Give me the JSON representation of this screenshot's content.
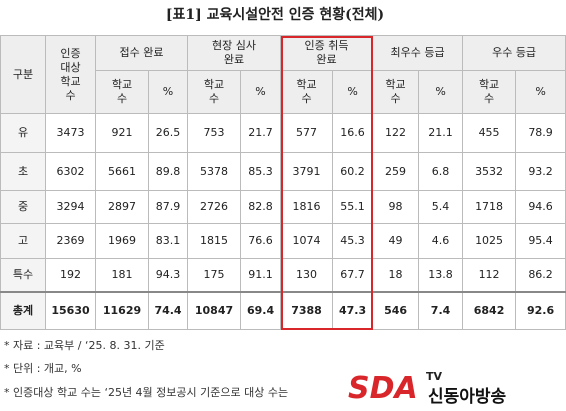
{
  "header": {
    "title": "[표1] 교육시설안전 인증 현황(전체)"
  },
  "table": {
    "corner": "구분",
    "target": "인증\n대상\n학교\n수",
    "groups": [
      "접수 완료",
      "현장 심사\n완료",
      "인증 취득\n완료",
      "최우수 등급",
      "우수 등급"
    ],
    "subheaders": [
      [
        "학교\n수",
        "%"
      ],
      [
        "학교\n수",
        "%"
      ],
      [
        "학교\n수",
        "%"
      ],
      [
        "학교\n수",
        "%"
      ],
      [
        "학교\n수",
        "%"
      ]
    ],
    "rows": [
      [
        "유",
        "3473",
        "921",
        "26.5",
        "753",
        "21.7",
        "577",
        "16.6",
        "122",
        "21.1",
        "455",
        "78.9"
      ],
      [
        "초",
        "6302",
        "5661",
        "89.8",
        "5378",
        "85.3",
        "3791",
        "60.2",
        "259",
        "6.8",
        "3532",
        "93.2"
      ],
      [
        "중",
        "3294",
        "2897",
        "87.9",
        "2726",
        "82.8",
        "1816",
        "55.1",
        "98",
        "5.4",
        "1718",
        "94.6"
      ],
      [
        "고",
        "2369",
        "1969",
        "83.1",
        "1815",
        "76.6",
        "1074",
        "45.3",
        "49",
        "4.6",
        "1025",
        "95.4"
      ],
      [
        "특수",
        "192",
        "181",
        "94.3",
        "175",
        "91.1",
        "130",
        "67.7",
        "18",
        "13.8",
        "112",
        "86.2"
      ],
      [
        "총계",
        "15630",
        "11629",
        "74.4",
        "10847",
        "69.4",
        "7388",
        "47.3",
        "546",
        "7.4",
        "6842",
        "92.6"
      ]
    ]
  },
  "notes": [
    "* 자료 : 교육부 / ‘25. 8. 31. 기준",
    "* 단위 : 개교, %",
    "* 인증대상 학교 수는 ‘25년 4월 정보공시 기준으로 대상 수는"
  ],
  "watermark": {
    "logo": "SDA",
    "tv": "TV",
    "name": "신동아방송"
  }
}
